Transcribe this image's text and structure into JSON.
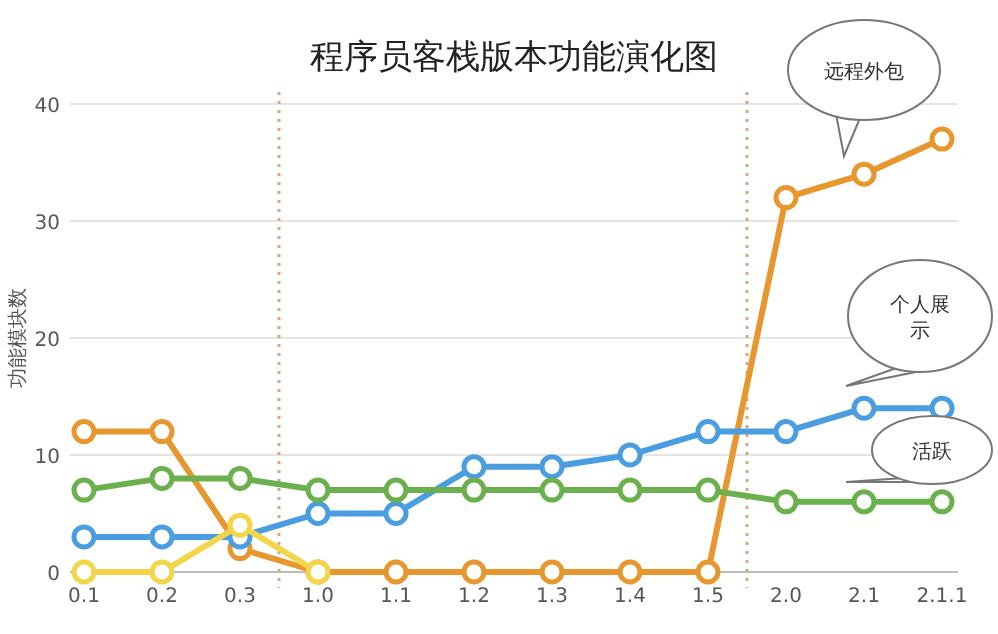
{
  "chart_data": {
    "type": "line",
    "title": "程序员客栈版本功能演化图",
    "ylabel": "功能模块数",
    "categories": [
      "0.1",
      "0.2",
      "0.3",
      "1.0",
      "1.1",
      "1.2",
      "1.3",
      "1.4",
      "1.5",
      "2.0",
      "2.1",
      "2.1.1"
    ],
    "series": [
      {
        "color": "#e8962e",
        "values": [
          12,
          12,
          2,
          0,
          0,
          0,
          0,
          0,
          0,
          32,
          34,
          37
        ]
      },
      {
        "color": "#4a9de0",
        "values": [
          3,
          3,
          3,
          5,
          5,
          9,
          9,
          10,
          12,
          12,
          14,
          14
        ]
      },
      {
        "color": "#6ab04c",
        "values": [
          7,
          8,
          8,
          7,
          7,
          7,
          7,
          7,
          7,
          6,
          6,
          6
        ]
      },
      {
        "color": "#f2d548",
        "values": [
          0,
          0,
          4,
          0,
          null,
          null,
          null,
          null,
          null,
          null,
          null,
          null
        ]
      }
    ],
    "ylim": [
      0,
      40
    ],
    "yticks": [
      0,
      10,
      20,
      30,
      40
    ],
    "grid": "y",
    "marker": "circle",
    "line_style": "solid",
    "annotations": [
      "远程外包",
      "个人展示",
      "活跃"
    ]
  }
}
